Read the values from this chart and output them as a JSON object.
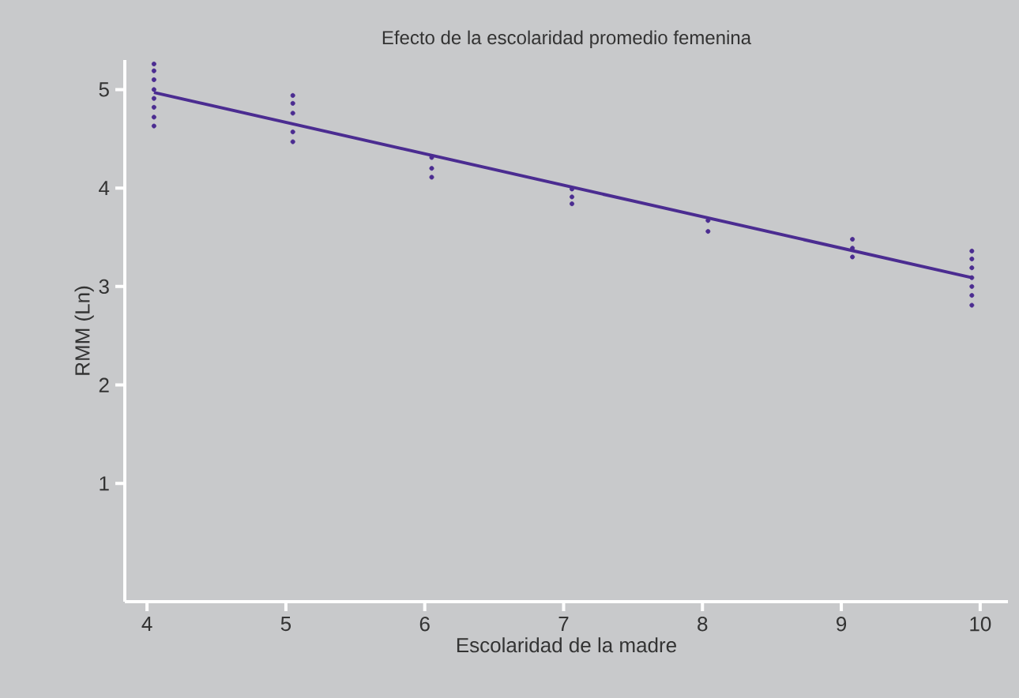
{
  "chart_data": {
    "type": "scatter",
    "title": "Efecto de la escolaridad promedio femenina",
    "xlabel": "Escolaridad de la madre",
    "ylabel": "RMM (Ln)",
    "xlim": [
      3.84,
      10.2
    ],
    "xticks": [
      4,
      5,
      6,
      7,
      8,
      9,
      10
    ],
    "ylim": [
      -0.2,
      5.3
    ],
    "yticks": [
      1,
      2,
      3,
      4,
      5
    ],
    "grid": false,
    "series": [
      {
        "color": "#4b2c91",
        "marker": "circle",
        "x": [
          4.05,
          4.05,
          4.05,
          4.05,
          4.05,
          4.05,
          4.05,
          4.05,
          5.05,
          5.05,
          5.05,
          5.05,
          5.05,
          6.05,
          6.05,
          6.05,
          7.06,
          7.06,
          7.06,
          8.04,
          8.04,
          9.08,
          9.08,
          9.08,
          9.94,
          9.94,
          9.94,
          9.94,
          9.94,
          9.94,
          9.94
        ],
        "values": [
          5.26,
          5.19,
          5.1,
          5.0,
          4.91,
          4.82,
          4.72,
          4.63,
          4.94,
          4.86,
          4.76,
          4.57,
          4.47,
          4.31,
          4.2,
          4.11,
          3.99,
          3.91,
          3.84,
          3.67,
          3.56,
          3.48,
          3.39,
          3.3,
          3.36,
          3.28,
          3.19,
          3.09,
          3.0,
          2.91,
          2.81
        ]
      },
      {
        "type": "line",
        "color": "#4b2c91",
        "marker": "none",
        "x": [
          4.05,
          9.94
        ],
        "values": [
          4.97,
          3.09
        ]
      }
    ]
  }
}
